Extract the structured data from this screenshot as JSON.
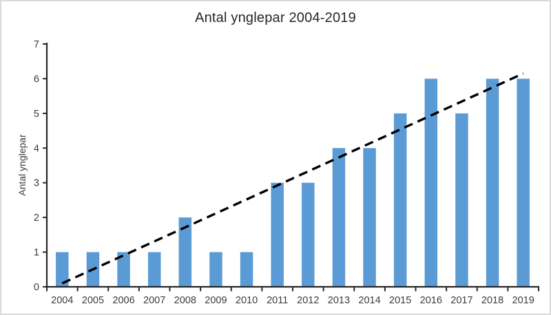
{
  "window": {
    "background": "#ffffff",
    "frame_border_color": "#d9d9d9"
  },
  "chart_data": {
    "type": "bar",
    "title": "Antal ynglepar 2004-2019",
    "xlabel": "",
    "ylabel": "Antal ynglepar",
    "categories": [
      "2004",
      "2005",
      "2006",
      "2007",
      "2008",
      "2009",
      "2010",
      "2011",
      "2012",
      "2013",
      "2014",
      "2015",
      "2016",
      "2017",
      "2018",
      "2019"
    ],
    "values": [
      1,
      1,
      1,
      1,
      2,
      1,
      1,
      3,
      3,
      4,
      4,
      5,
      6,
      5,
      6,
      6
    ],
    "ylim": [
      0,
      7
    ],
    "ytick_step": 1,
    "yticks": [
      "0",
      "1",
      "2",
      "3",
      "4",
      "5",
      "6",
      "7"
    ],
    "grid": false,
    "legend": "none",
    "bar_color": "#5b9bd5",
    "axis_color": "#262626",
    "label_color": "#3b3b3b",
    "trendline": {
      "type": "linear",
      "style": "dashed",
      "color": "#000000",
      "start_value": 0.1,
      "end_value": 6.15
    }
  }
}
